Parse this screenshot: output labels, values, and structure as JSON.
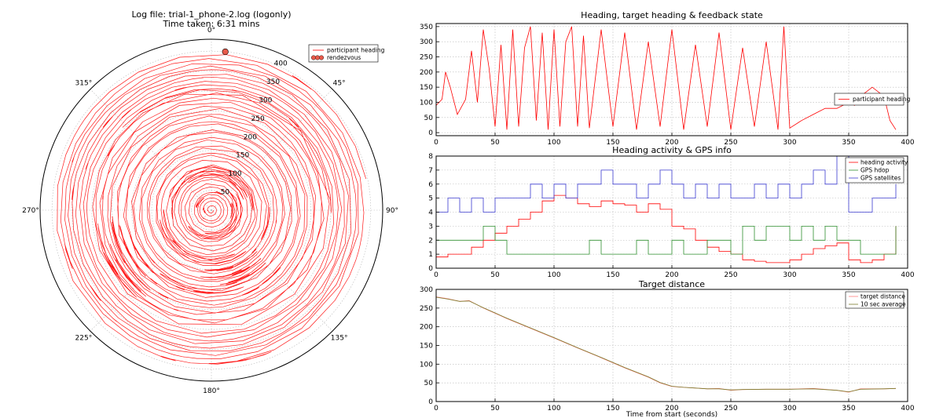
{
  "chart_data": [
    {
      "type": "scatter",
      "projection": "polar",
      "title": "Log file: trial-1_phone-2.log (logonly)",
      "subtitle": "Time taken: 6:31 mins",
      "angle_ticks": [
        "0°",
        "45°",
        "90°",
        "135°",
        "180°",
        "225°",
        "270°",
        "315°"
      ],
      "radial_ticks": [
        "50",
        "100",
        "150",
        "200",
        "250",
        "300",
        "350",
        "400"
      ],
      "rlim": [
        0,
        430
      ],
      "grid": true,
      "legend_position": "top-right",
      "legend": [
        "participant heading",
        "rendezvous"
      ],
      "colors": {
        "heading": "#ff0000",
        "rendezvous": "#e85a4a"
      },
      "rendezvous": {
        "angle_deg": 5,
        "radius": 400
      }
    },
    {
      "type": "line",
      "title": "Heading, target heading & feedback state",
      "xlim": [
        0,
        400
      ],
      "ylim": [
        -10,
        360
      ],
      "x_ticks": [
        "0",
        "50",
        "100",
        "150",
        "200",
        "250",
        "300",
        "350",
        "400"
      ],
      "y_ticks": [
        "0",
        "50",
        "100",
        "150",
        "200",
        "250",
        "300",
        "350"
      ],
      "grid": true,
      "legend_position": "center-right",
      "series": [
        {
          "name": "participant heading",
          "color": "#ff0000",
          "x": [
            0,
            5,
            8,
            12,
            18,
            25,
            30,
            35,
            40,
            45,
            50,
            55,
            60,
            65,
            70,
            75,
            80,
            85,
            90,
            95,
            100,
            105,
            110,
            115,
            120,
            125,
            130,
            140,
            150,
            160,
            170,
            180,
            190,
            200,
            210,
            220,
            230,
            240,
            250,
            260,
            270,
            280,
            290,
            295,
            300,
            310,
            320,
            330,
            340,
            350,
            355,
            360,
            370,
            380,
            385,
            390
          ],
          "y": [
            90,
            110,
            200,
            150,
            60,
            110,
            270,
            100,
            340,
            210,
            20,
            290,
            10,
            340,
            20,
            280,
            350,
            40,
            330,
            10,
            340,
            20,
            300,
            350,
            20,
            320,
            15,
            340,
            20,
            330,
            10,
            300,
            20,
            340,
            10,
            290,
            20,
            330,
            10,
            280,
            20,
            300,
            10,
            350,
            15,
            40,
            60,
            80,
            80,
            100,
            90,
            120,
            150,
            120,
            40,
            10
          ]
        }
      ]
    },
    {
      "type": "line",
      "title": "Heading activity & GPS info",
      "xlim": [
        0,
        400
      ],
      "ylim": [
        0,
        8
      ],
      "x_ticks": [
        "0",
        "50",
        "100",
        "150",
        "200",
        "250",
        "300",
        "350",
        "400"
      ],
      "y_ticks": [
        "0",
        "1",
        "2",
        "3",
        "4",
        "5",
        "6",
        "7",
        "8"
      ],
      "grid": true,
      "legend_position": "top-right",
      "series": [
        {
          "name": "heading activity",
          "color": "#ff0000",
          "x": [
            0,
            10,
            20,
            30,
            40,
            50,
            60,
            70,
            80,
            90,
            100,
            110,
            120,
            130,
            140,
            150,
            160,
            170,
            180,
            190,
            200,
            210,
            220,
            230,
            240,
            250,
            260,
            270,
            280,
            290,
            300,
            310,
            320,
            330,
            340,
            350,
            360,
            370,
            380,
            390
          ],
          "y": [
            0.8,
            1.0,
            1.0,
            1.5,
            2.0,
            2.5,
            3.0,
            3.5,
            4.0,
            4.8,
            5.2,
            5.0,
            4.6,
            4.4,
            4.8,
            4.6,
            4.5,
            4.0,
            4.6,
            4.2,
            3.0,
            2.8,
            2.0,
            1.5,
            1.2,
            1.0,
            0.6,
            0.5,
            0.4,
            0.4,
            0.6,
            1.0,
            1.4,
            1.6,
            1.8,
            0.6,
            0.4,
            0.6,
            1.0,
            3.0
          ]
        },
        {
          "name": "GPS hdop",
          "color": "#2f8f2f",
          "x": [
            0,
            10,
            20,
            30,
            40,
            50,
            60,
            70,
            80,
            90,
            100,
            110,
            120,
            130,
            140,
            150,
            160,
            170,
            180,
            190,
            200,
            210,
            220,
            230,
            240,
            250,
            260,
            270,
            280,
            290,
            300,
            310,
            320,
            330,
            340,
            350,
            360,
            370,
            380,
            390
          ],
          "y": [
            2,
            2,
            2,
            2,
            3,
            2,
            1,
            1,
            1,
            1,
            1,
            1,
            1,
            2,
            1,
            1,
            1,
            2,
            1,
            1,
            2,
            1,
            1,
            2,
            2,
            1,
            3,
            2,
            3,
            3,
            2,
            3,
            2,
            3,
            2,
            2,
            1,
            1,
            1,
            3
          ]
        },
        {
          "name": "GPS satellites",
          "color": "#3b3bcf",
          "x": [
            0,
            10,
            20,
            30,
            40,
            50,
            60,
            70,
            80,
            90,
            100,
            110,
            120,
            130,
            140,
            150,
            160,
            170,
            180,
            190,
            200,
            210,
            220,
            230,
            240,
            250,
            260,
            270,
            280,
            290,
            300,
            310,
            320,
            330,
            340,
            350,
            360,
            370,
            380,
            390
          ],
          "y": [
            4,
            5,
            4,
            5,
            4,
            5,
            5,
            5,
            6,
            5,
            6,
            5,
            6,
            6,
            7,
            6,
            6,
            5,
            6,
            7,
            6,
            5,
            6,
            5,
            6,
            5,
            5,
            6,
            5,
            6,
            5,
            6,
            7,
            6,
            8,
            4,
            4,
            5,
            5,
            6
          ]
        }
      ]
    },
    {
      "type": "line",
      "title": "Target distance",
      "xlabel": "Time from start (seconds)",
      "xlim": [
        0,
        400
      ],
      "ylim": [
        0,
        300
      ],
      "x_ticks": [
        "0",
        "50",
        "100",
        "150",
        "200",
        "250",
        "300",
        "350",
        "400"
      ],
      "y_ticks": [
        "0",
        "50",
        "100",
        "150",
        "200",
        "250",
        "300"
      ],
      "grid": true,
      "legend_position": "top-right",
      "series": [
        {
          "name": "target distance",
          "color": "#ff7f7f",
          "x": [
            0,
            10,
            20,
            28,
            40,
            60,
            80,
            100,
            120,
            140,
            160,
            180,
            190,
            200,
            210,
            220,
            230,
            240,
            250,
            260,
            280,
            300,
            320,
            340,
            350,
            360,
            380,
            390
          ],
          "y": [
            280,
            275,
            268,
            270,
            250,
            222,
            196,
            170,
            143,
            117,
            90,
            65,
            50,
            40,
            38,
            36,
            34,
            35,
            30,
            32,
            33,
            33,
            35,
            30,
            25,
            34,
            34,
            35
          ]
        },
        {
          "name": "10 sec average",
          "color": "#7a7a2a",
          "x": [
            0,
            10,
            20,
            28,
            40,
            60,
            80,
            100,
            120,
            140,
            160,
            180,
            190,
            200,
            210,
            220,
            230,
            240,
            250,
            260,
            280,
            300,
            320,
            340,
            350,
            360,
            380,
            390
          ],
          "y": [
            279,
            274,
            268,
            269,
            251,
            223,
            197,
            171,
            144,
            118,
            91,
            66,
            51,
            41,
            38,
            36,
            34,
            34,
            31,
            32,
            33,
            33,
            34,
            30,
            26,
            33,
            34,
            35
          ]
        }
      ]
    }
  ]
}
